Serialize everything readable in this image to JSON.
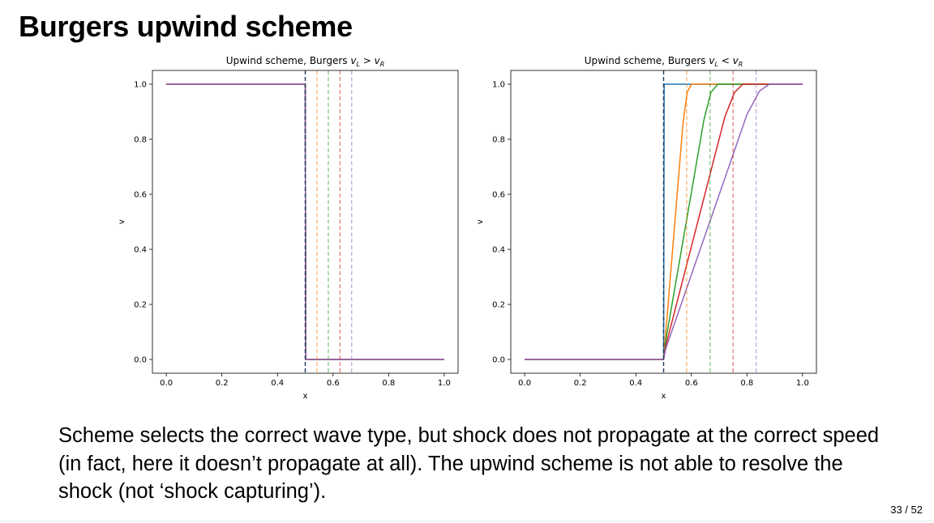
{
  "slide": {
    "title": "Burgers upwind scheme",
    "body": "Scheme selects the correct wave type, but shock does not propagate at the correct speed (in fact, here it doesn’t propagate at all). The upwind scheme is not able to resolve the shock (not ‘shock capturing’).",
    "page": "33 / 52"
  },
  "colors": [
    "#1f77b4",
    "#ff7f0e",
    "#2ca02c",
    "#d62728",
    "#9467bd"
  ],
  "chart_data": [
    {
      "type": "line",
      "title_prefix": "Upwind scheme, Burgers ",
      "title_math": {
        "lhs": "v",
        "lhs_sub": "L",
        "op": ">",
        "rhs": "v",
        "rhs_sub": "R"
      },
      "xlabel": "x",
      "ylabel": "v",
      "xlim": [
        -0.05,
        1.05
      ],
      "ylim": [
        -0.05,
        1.05
      ],
      "xticks": [
        "0.0",
        "0.2",
        "0.4",
        "0.6",
        "0.8",
        "1.0"
      ],
      "yticks": [
        "0.0",
        "0.2",
        "0.4",
        "0.6",
        "0.8",
        "1.0"
      ],
      "grid": false,
      "series": [
        {
          "x": [
            0.0,
            0.5,
            0.502,
            1.0
          ],
          "y": [
            1.0,
            1.0,
            0.0,
            0.0
          ]
        },
        {
          "x": [
            0.0,
            0.5,
            0.502,
            1.0
          ],
          "y": [
            1.0,
            1.0,
            0.0,
            0.0
          ]
        },
        {
          "x": [
            0.0,
            0.5,
            0.502,
            1.0
          ],
          "y": [
            1.0,
            1.0,
            0.0,
            0.0
          ]
        },
        {
          "x": [
            0.0,
            0.5,
            0.502,
            1.0
          ],
          "y": [
            1.0,
            1.0,
            0.0,
            0.0
          ]
        },
        {
          "x": [
            0.0,
            0.5,
            0.502,
            1.0
          ],
          "y": [
            1.0,
            1.0,
            0.0,
            0.0
          ]
        }
      ],
      "vlines": [
        0.5,
        0.542,
        0.583,
        0.625,
        0.667
      ]
    },
    {
      "type": "line",
      "title_prefix": "Upwind scheme, Burgers ",
      "title_math": {
        "lhs": "v",
        "lhs_sub": "L",
        "op": "<",
        "rhs": "v",
        "rhs_sub": "R"
      },
      "xlabel": "x",
      "ylabel": "v",
      "xlim": [
        -0.05,
        1.05
      ],
      "ylim": [
        -0.05,
        1.05
      ],
      "xticks": [
        "0.0",
        "0.2",
        "0.4",
        "0.6",
        "0.8",
        "1.0"
      ],
      "yticks": [
        "0.0",
        "0.2",
        "0.4",
        "0.6",
        "0.8",
        "1.0"
      ],
      "grid": false,
      "series": [
        {
          "x": [
            0.0,
            0.5,
            0.502,
            1.0
          ],
          "y": [
            0.0,
            0.0,
            1.0,
            1.0
          ]
        },
        {
          "x": [
            0.0,
            0.5,
            0.508,
            0.57,
            0.585,
            0.6,
            1.0
          ],
          "y": [
            0.0,
            0.0,
            0.1,
            0.86,
            0.97,
            1.0,
            1.0
          ]
        },
        {
          "x": [
            0.0,
            0.5,
            0.508,
            0.645,
            0.67,
            0.695,
            1.0
          ],
          "y": [
            0.0,
            0.0,
            0.07,
            0.87,
            0.97,
            1.0,
            1.0
          ]
        },
        {
          "x": [
            0.0,
            0.5,
            0.508,
            0.72,
            0.755,
            0.785,
            1.0
          ],
          "y": [
            0.0,
            0.0,
            0.05,
            0.88,
            0.97,
            1.0,
            1.0
          ]
        },
        {
          "x": [
            0.0,
            0.5,
            0.508,
            0.8,
            0.845,
            0.88,
            1.0
          ],
          "y": [
            0.0,
            0.0,
            0.04,
            0.89,
            0.975,
            1.0,
            1.0
          ]
        }
      ],
      "vlines": [
        0.5,
        0.583,
        0.667,
        0.75,
        0.833
      ]
    }
  ]
}
